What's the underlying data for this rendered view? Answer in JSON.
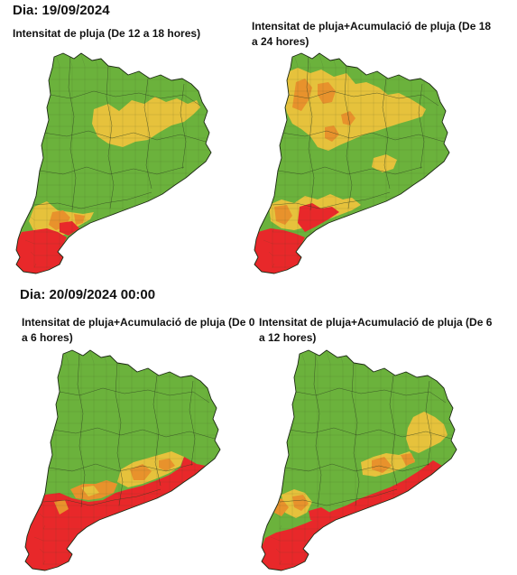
{
  "day1": {
    "label": "Dia: 19/09/2024"
  },
  "day2": {
    "label": "Dia: 20/09/2024 00:00"
  },
  "maps": [
    {
      "caption": "Intensitat de pluja (De 12 a 18 hores)"
    },
    {
      "caption": "Intensitat de pluja+Acumulació de pluja (De 18 a 24 hores)"
    },
    {
      "caption": "Intensitat de pluja+Acumulació de pluja (De 0 a 6 hores)"
    },
    {
      "caption": "Intensitat de pluja+Acumulació de pluja (De 6 a 12 hores)"
    }
  ],
  "colors": {
    "green": "#6bb23c",
    "yellow": "#e6c23c",
    "orange": "#e8922c",
    "red": "#e8282a",
    "border": "#1c2a14"
  }
}
